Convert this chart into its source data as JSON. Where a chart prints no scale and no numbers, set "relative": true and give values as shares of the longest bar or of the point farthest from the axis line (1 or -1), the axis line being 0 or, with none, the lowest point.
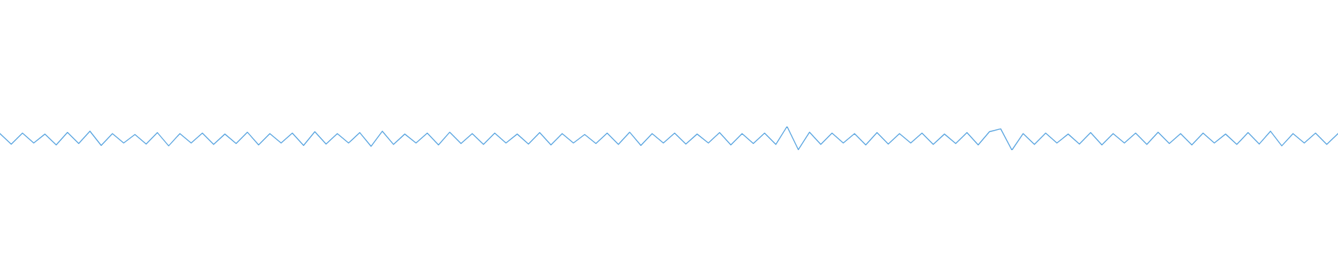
{
  "chart_data": {
    "type": "line",
    "relative": true,
    "color": "#5aa5e0",
    "categories": [
      null,
      null,
      null,
      null,
      null,
      null,
      null,
      null,
      null,
      null,
      null,
      null,
      null,
      null,
      null,
      null,
      null,
      null,
      null,
      null,
      null,
      null,
      null,
      null,
      null,
      null,
      null,
      null,
      null,
      null,
      null,
      null,
      null,
      null,
      null,
      null,
      null,
      null,
      null,
      null,
      null,
      null,
      null,
      null,
      null,
      null,
      null,
      null,
      null,
      null,
      null,
      null,
      null,
      null,
      null,
      null,
      null,
      null,
      null,
      null,
      null,
      null,
      null,
      null,
      null,
      null,
      null,
      null,
      null,
      null,
      null,
      null,
      null,
      null,
      null,
      null,
      null,
      null,
      null,
      null,
      null,
      null,
      null,
      null,
      null,
      null,
      null,
      null,
      null,
      null,
      null,
      null,
      null,
      null,
      null,
      null,
      null,
      null,
      null,
      null,
      null,
      null,
      null,
      null,
      null,
      null,
      null,
      null,
      null,
      null,
      null,
      null,
      null,
      null,
      null,
      null,
      null,
      null,
      null,
      null
    ],
    "values": [
      0.7,
      0.25,
      0.72,
      0.3,
      0.68,
      0.22,
      0.75,
      0.28,
      0.8,
      0.2,
      0.7,
      0.3,
      0.66,
      0.26,
      0.74,
      0.18,
      0.7,
      0.3,
      0.72,
      0.24,
      0.68,
      0.28,
      0.76,
      0.22,
      0.7,
      0.3,
      0.72,
      0.2,
      0.78,
      0.26,
      0.7,
      0.3,
      0.74,
      0.16,
      0.8,
      0.24,
      0.68,
      0.3,
      0.72,
      0.22,
      0.76,
      0.28,
      0.7,
      0.24,
      0.72,
      0.3,
      0.68,
      0.26,
      0.74,
      0.22,
      0.7,
      0.3,
      0.66,
      0.28,
      0.72,
      0.24,
      0.76,
      0.2,
      0.7,
      0.3,
      0.72,
      0.26,
      0.68,
      0.3,
      0.74,
      0.22,
      0.7,
      0.28,
      0.72,
      0.24,
      1.0,
      0.02,
      0.76,
      0.24,
      0.72,
      0.3,
      0.7,
      0.22,
      0.74,
      0.26,
      0.7,
      0.3,
      0.72,
      0.24,
      0.68,
      0.28,
      0.74,
      0.22,
      0.78,
      0.9,
      0.0,
      0.7,
      0.24,
      0.72,
      0.3,
      0.68,
      0.26,
      0.74,
      0.22,
      0.7,
      0.3,
      0.72,
      0.24,
      0.76,
      0.28,
      0.7,
      0.22,
      0.72,
      0.3,
      0.68,
      0.24,
      0.74,
      0.26,
      0.8,
      0.18,
      0.7,
      0.3,
      0.72,
      0.24,
      0.7
    ]
  }
}
